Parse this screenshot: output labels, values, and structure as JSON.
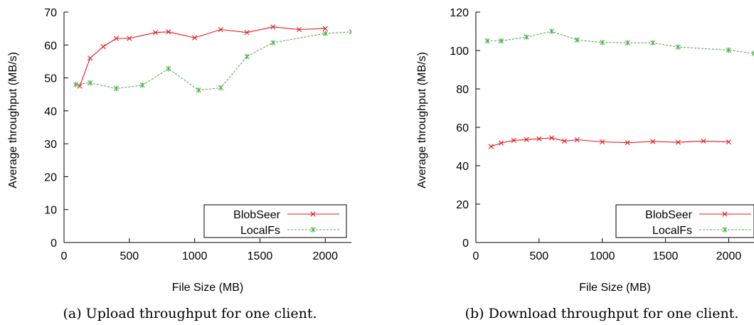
{
  "colors": {
    "blobseer": "#e41a1c",
    "localfs": "#4daf4a",
    "axis": "#000000"
  },
  "chart_data": [
    {
      "type": "line",
      "caption": "(a) Upload throughput for one client.",
      "xlabel": "File Size (MB)",
      "ylabel": "Average throughput (MB/s)",
      "xlim": [
        0,
        2200
      ],
      "ylim": [
        0,
        70
      ],
      "xticks": [
        0,
        500,
        1000,
        1500,
        2000
      ],
      "yticks": [
        0,
        10,
        20,
        30,
        40,
        50,
        60,
        70
      ],
      "legend_position": "bottom-right",
      "series": [
        {
          "name": "BlobSeer",
          "color": "#e41a1c",
          "dash": "solid",
          "marker": "x",
          "x": [
            120,
            200,
            300,
            400,
            500,
            700,
            800,
            1000,
            1200,
            1400,
            1600,
            1800,
            2000
          ],
          "y": [
            47.5,
            56,
            59.5,
            62,
            62,
            63.8,
            64,
            62.2,
            64.7,
            63.8,
            65.5,
            64.7,
            65
          ]
        },
        {
          "name": "LocalFs",
          "color": "#4daf4a",
          "dash": "dashed",
          "marker": "*",
          "x": [
            90,
            200,
            400,
            600,
            800,
            1030,
            1200,
            1400,
            1600,
            2000,
            2200
          ],
          "y": [
            48,
            48.5,
            46.8,
            47.8,
            52.8,
            46.3,
            47,
            56.5,
            60.7,
            63.5,
            64
          ]
        }
      ]
    },
    {
      "type": "line",
      "caption": "(b) Download throughput for one client.",
      "xlabel": "File Size (MB)",
      "ylabel": "Average throughput (MB/s)",
      "xlim": [
        0,
        2200
      ],
      "ylim": [
        0,
        120
      ],
      "xticks": [
        0,
        500,
        1000,
        1500,
        2000
      ],
      "yticks": [
        0,
        20,
        40,
        60,
        80,
        100,
        120
      ],
      "legend_position": "bottom-right",
      "series": [
        {
          "name": "BlobSeer",
          "color": "#e41a1c",
          "dash": "solid",
          "marker": "x",
          "x": [
            120,
            200,
            300,
            400,
            500,
            600,
            700,
            800,
            1000,
            1200,
            1400,
            1600,
            1800,
            2000
          ],
          "y": [
            50,
            51.8,
            53.2,
            53.6,
            54,
            54.5,
            52.8,
            53.5,
            52.4,
            52,
            52.6,
            52.2,
            52.8,
            52.4
          ]
        },
        {
          "name": "LocalFs",
          "color": "#4daf4a",
          "dash": "dashed",
          "marker": "*",
          "x": [
            90,
            200,
            400,
            600,
            800,
            1000,
            1200,
            1400,
            1600,
            2000,
            2200
          ],
          "y": [
            105,
            105,
            107,
            110,
            105.5,
            104.2,
            104,
            104,
            101.8,
            100.2,
            98.5
          ]
        }
      ]
    }
  ]
}
